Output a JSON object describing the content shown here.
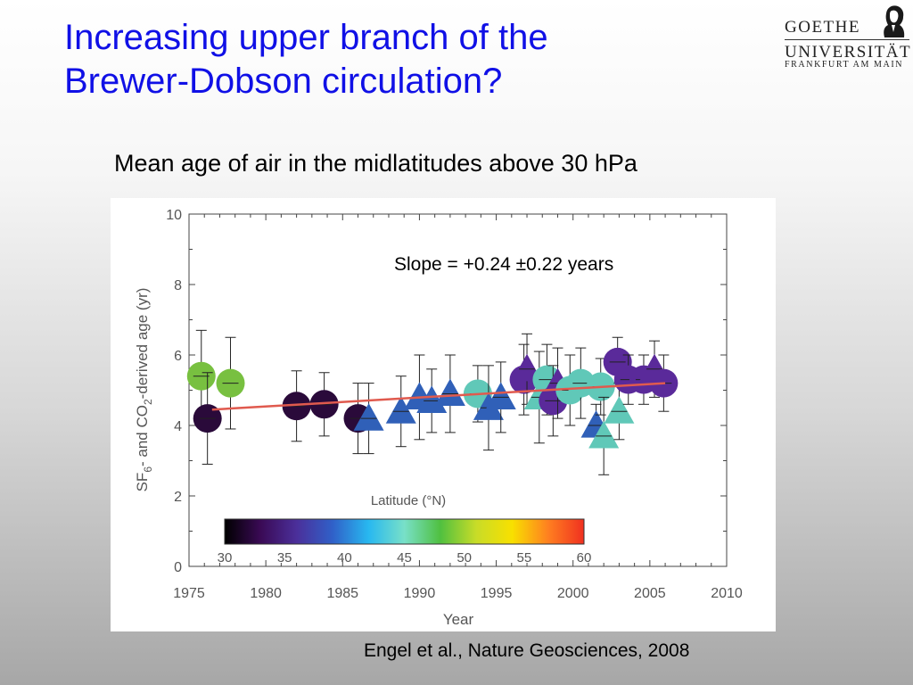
{
  "slide": {
    "title_line1": "Increasing upper branch of the",
    "title_line2": "Brewer-Dobson circulation?",
    "subtitle": "Mean age of air in the midlatitudes above 30 hPa",
    "citation": "Engel et al., Nature Geosciences, 2008"
  },
  "logo": {
    "line1": "GOETHE",
    "line2": "UNIVERSITÄT",
    "line3": "FRANKFURT AM MAIN",
    "icon": "goethe-portrait-icon"
  },
  "colors": {
    "title": "#1010e6",
    "trend_line": "#e05a4e",
    "error_bar": "#222222"
  },
  "chart_data": {
    "type": "scatter",
    "xlabel": "Year",
    "ylabel_parts": [
      "SF",
      "6",
      "- and CO",
      "2",
      "-derived age (yr)"
    ],
    "xlim": [
      1975,
      2010
    ],
    "ylim": [
      0,
      10
    ],
    "x_ticks": [
      "1975",
      "1980",
      "1985",
      "1990",
      "1995",
      "2000",
      "2005",
      "2010"
    ],
    "y_ticks": [
      "0",
      "2",
      "4",
      "6",
      "8",
      "10"
    ],
    "annotation": "Slope = +0.24 ±0.22 years",
    "trend_line": {
      "x": [
        1976.5,
        2006
      ],
      "y": [
        4.45,
        5.2
      ]
    },
    "colorbar": {
      "title": "Latitude (°N)",
      "ticks": [
        "30",
        "35",
        "40",
        "45",
        "50",
        "55",
        "60"
      ],
      "stops": [
        "#000000",
        "#3a0a55",
        "#4b2f9a",
        "#3060c8",
        "#28b8f0",
        "#78e0c8",
        "#50c040",
        "#c8dc28",
        "#f8e000",
        "#ff8020",
        "#f03020"
      ]
    },
    "points": [
      {
        "x": 1975.8,
        "y": 5.4,
        "marker": "circle",
        "color": "#78c040",
        "err": 1.3
      },
      {
        "x": 1976.2,
        "y": 4.2,
        "marker": "circle",
        "color": "#2a0a3a",
        "err": 1.3
      },
      {
        "x": 1977.7,
        "y": 5.2,
        "marker": "circle",
        "color": "#78c040",
        "err": 1.3
      },
      {
        "x": 1982.0,
        "y": 4.55,
        "marker": "circle",
        "color": "#2a0a3a",
        "err": 1.0
      },
      {
        "x": 1983.8,
        "y": 4.6,
        "marker": "circle",
        "color": "#2a0a3a",
        "err": 0.9
      },
      {
        "x": 1986.0,
        "y": 4.2,
        "marker": "circle",
        "color": "#2a0a3a",
        "err": 1.0
      },
      {
        "x": 1986.7,
        "y": 4.2,
        "marker": "triangle",
        "color": "#3060b8",
        "err": 1.0
      },
      {
        "x": 1988.8,
        "y": 4.4,
        "marker": "triangle",
        "color": "#3060b8",
        "err": 1.0
      },
      {
        "x": 1990.0,
        "y": 4.8,
        "marker": "triangle",
        "color": "#3060b8",
        "err": 1.2
      },
      {
        "x": 1990.8,
        "y": 4.7,
        "marker": "triangle",
        "color": "#3060b8",
        "err": 0.9
      },
      {
        "x": 1992.0,
        "y": 4.9,
        "marker": "triangle",
        "color": "#3060b8",
        "err": 1.1
      },
      {
        "x": 1993.8,
        "y": 4.9,
        "marker": "circle",
        "color": "#60c8b8",
        "err": 0.8
      },
      {
        "x": 1994.5,
        "y": 4.5,
        "marker": "triangle",
        "color": "#3060b8",
        "err": 1.2
      },
      {
        "x": 1995.3,
        "y": 4.8,
        "marker": "triangle",
        "color": "#3060b8",
        "err": 1.0
      },
      {
        "x": 1996.8,
        "y": 5.3,
        "marker": "circle",
        "color": "#5a2a9a",
        "err": 1.0
      },
      {
        "x": 1997.0,
        "y": 5.6,
        "marker": "triangle",
        "color": "#5a2a9a",
        "err": 1.0
      },
      {
        "x": 1997.8,
        "y": 4.8,
        "marker": "triangle",
        "color": "#60c8b8",
        "err": 1.3
      },
      {
        "x": 1998.3,
        "y": 5.3,
        "marker": "circle",
        "color": "#60c8b8",
        "err": 1.0
      },
      {
        "x": 1998.7,
        "y": 4.7,
        "marker": "circle",
        "color": "#5a2a9a",
        "err": 1.0
      },
      {
        "x": 1999.0,
        "y": 5.2,
        "marker": "triangle",
        "color": "#5a2a9a",
        "err": 1.0
      },
      {
        "x": 1999.8,
        "y": 5.0,
        "marker": "circle",
        "color": "#60c8b8",
        "err": 1.0
      },
      {
        "x": 2000.5,
        "y": 5.2,
        "marker": "circle",
        "color": "#60c8b8",
        "err": 1.0
      },
      {
        "x": 2001.5,
        "y": 4.0,
        "marker": "triangle",
        "color": "#3060b8",
        "err": 0.6
      },
      {
        "x": 2001.8,
        "y": 5.1,
        "marker": "circle",
        "color": "#60c8b8",
        "err": 0.8
      },
      {
        "x": 2002.0,
        "y": 3.7,
        "marker": "triangle",
        "color": "#60c8b8",
        "err": 1.1
      },
      {
        "x": 2002.9,
        "y": 5.8,
        "marker": "circle",
        "color": "#5a2a9a",
        "err": 0.7
      },
      {
        "x": 2003.0,
        "y": 4.4,
        "marker": "triangle",
        "color": "#60c8b8",
        "err": 0.8
      },
      {
        "x": 2003.6,
        "y": 5.3,
        "marker": "circle",
        "color": "#5a2a9a",
        "err": 0.7
      },
      {
        "x": 2004.6,
        "y": 5.3,
        "marker": "circle",
        "color": "#5a2a9a",
        "err": 0.7
      },
      {
        "x": 2005.3,
        "y": 5.6,
        "marker": "triangle",
        "color": "#5a2a9a",
        "err": 0.8
      },
      {
        "x": 2005.9,
        "y": 5.2,
        "marker": "circle",
        "color": "#5a2a9a",
        "err": 0.8
      }
    ]
  }
}
